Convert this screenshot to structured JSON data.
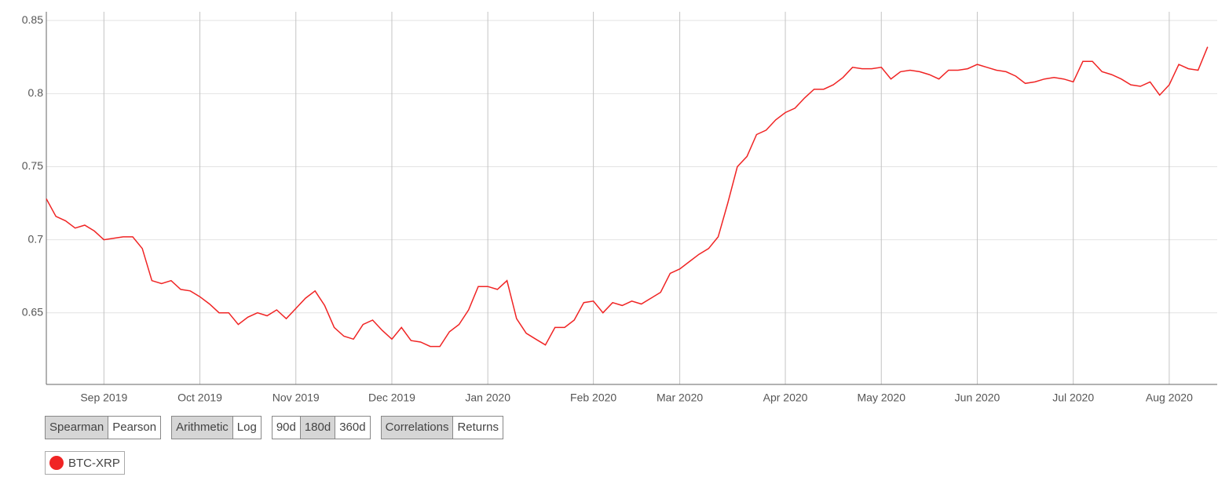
{
  "chart_data": {
    "type": "line",
    "categories": [
      null,
      null,
      null,
      null,
      null,
      null,
      "Sep 2019",
      null,
      null,
      null,
      null,
      null,
      null,
      null,
      null,
      null,
      "Oct 2019",
      null,
      null,
      null,
      null,
      null,
      null,
      null,
      null,
      null,
      "Nov 2019",
      null,
      null,
      null,
      null,
      null,
      null,
      null,
      null,
      null,
      "Dec 2019",
      null,
      null,
      null,
      null,
      null,
      null,
      null,
      null,
      null,
      "Jan 2020",
      null,
      null,
      null,
      null,
      null,
      null,
      null,
      null,
      null,
      null,
      "Feb 2020",
      null,
      null,
      null,
      null,
      null,
      null,
      null,
      null,
      "Mar 2020",
      null,
      null,
      null,
      null,
      null,
      null,
      null,
      null,
      null,
      null,
      "Apr 2020",
      null,
      null,
      null,
      null,
      null,
      null,
      null,
      null,
      null,
      "May 2020",
      null,
      null,
      null,
      null,
      null,
      null,
      null,
      null,
      null,
      "Jun 2020",
      null,
      null,
      null,
      null,
      null,
      null,
      null,
      null,
      null,
      "Jul 2020",
      null,
      null,
      null,
      null,
      null,
      null,
      null,
      null,
      null,
      "Aug 2020",
      null,
      null,
      null,
      null
    ],
    "series": [
      {
        "name": "BTC-XRP",
        "color": "#f02424",
        "values": [
          0.728,
          0.716,
          0.713,
          0.708,
          0.71,
          0.706,
          0.7,
          0.701,
          0.702,
          0.702,
          0.694,
          0.672,
          0.67,
          0.672,
          0.666,
          0.665,
          0.661,
          0.656,
          0.65,
          0.65,
          0.642,
          0.647,
          0.65,
          0.648,
          0.652,
          0.646,
          0.653,
          0.66,
          0.665,
          0.655,
          0.64,
          0.634,
          0.632,
          0.642,
          0.645,
          0.638,
          0.632,
          0.64,
          0.631,
          0.63,
          0.627,
          0.627,
          0.637,
          0.642,
          0.652,
          0.668,
          0.668,
          0.666,
          0.672,
          0.646,
          0.636,
          0.632,
          0.628,
          0.64,
          0.64,
          0.645,
          0.657,
          0.658,
          0.65,
          0.657,
          0.655,
          0.658,
          0.656,
          0.66,
          0.664,
          0.677,
          0.68,
          0.685,
          0.69,
          0.694,
          0.702,
          0.725,
          0.75,
          0.757,
          0.772,
          0.775,
          0.782,
          0.787,
          0.79,
          0.797,
          0.803,
          0.803,
          0.806,
          0.811,
          0.818,
          0.817,
          0.817,
          0.818,
          0.81,
          0.815,
          0.816,
          0.815,
          0.813,
          0.81,
          0.816,
          0.816,
          0.817,
          0.82,
          0.818,
          0.816,
          0.815,
          0.812,
          0.807,
          0.808,
          0.81,
          0.811,
          0.81,
          0.808,
          0.822,
          0.822,
          0.815,
          0.813,
          0.81,
          0.806,
          0.805,
          0.808,
          0.799,
          0.806,
          0.82,
          0.817,
          0.816,
          0.832
        ]
      }
    ],
    "ylim": [
      0.601,
      0.856
    ],
    "yticks": [
      0.65,
      0.7,
      0.75,
      0.8,
      0.85
    ],
    "grid": true
  },
  "controls": [
    {
      "options": [
        "Spearman",
        "Pearson"
      ],
      "selected": 0
    },
    {
      "options": [
        "Arithmetic",
        "Log"
      ],
      "selected": 0
    },
    {
      "options": [
        "90d",
        "180d",
        "360d"
      ],
      "selected": 1
    },
    {
      "options": [
        "Correlations",
        "Returns"
      ],
      "selected": 0
    }
  ]
}
